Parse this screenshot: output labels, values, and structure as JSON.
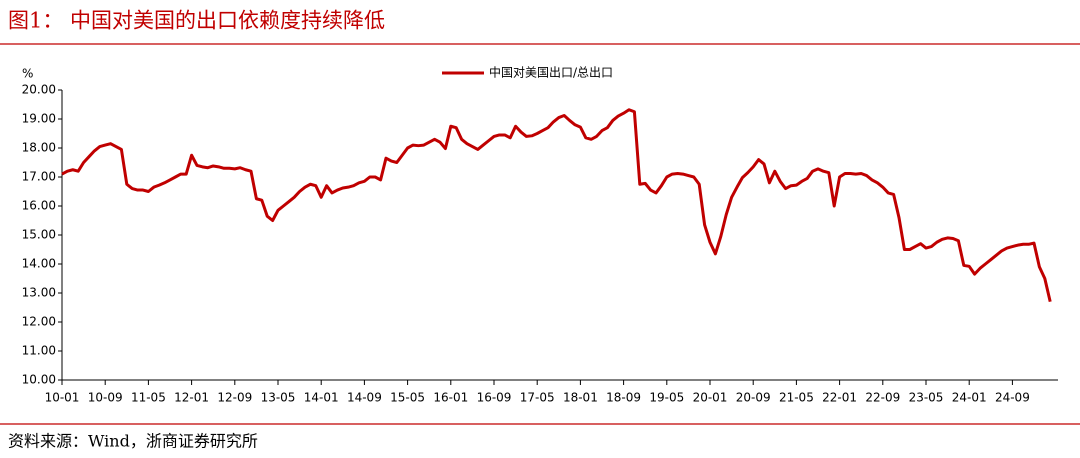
{
  "chart_data": {
    "type": "line",
    "title": "图1：  中国对美国的出口依赖度持续降低",
    "y_label": "%",
    "source": "资料来源：Wind，浙商证券研究所",
    "legend": "top",
    "categories": [
      "10-01",
      null,
      null,
      null,
      null,
      null,
      null,
      null,
      "10-09",
      null,
      null,
      null,
      null,
      null,
      null,
      null,
      "11-05",
      null,
      null,
      null,
      null,
      null,
      null,
      null,
      "12-01",
      null,
      null,
      null,
      null,
      null,
      null,
      null,
      "12-09",
      null,
      null,
      null,
      null,
      null,
      null,
      null,
      "13-05",
      null,
      null,
      null,
      null,
      null,
      null,
      null,
      "14-01",
      null,
      null,
      null,
      null,
      null,
      null,
      null,
      "14-09",
      null,
      null,
      null,
      null,
      null,
      null,
      null,
      "15-05",
      null,
      null,
      null,
      null,
      null,
      null,
      null,
      "16-01",
      null,
      null,
      null,
      null,
      null,
      null,
      null,
      "16-09",
      null,
      null,
      null,
      null,
      null,
      null,
      null,
      "17-05",
      null,
      null,
      null,
      null,
      null,
      null,
      null,
      "18-01",
      null,
      null,
      null,
      null,
      null,
      null,
      null,
      "18-09",
      null,
      null,
      null,
      null,
      null,
      null,
      null,
      "19-05",
      null,
      null,
      null,
      null,
      null,
      null,
      null,
      "20-01",
      null,
      null,
      null,
      null,
      null,
      null,
      null,
      "20-09",
      null,
      null,
      null,
      null,
      null,
      null,
      null,
      "21-05",
      null,
      null,
      null,
      null,
      null,
      null,
      null,
      "22-01",
      null,
      null,
      null,
      null,
      null,
      null,
      null,
      "22-09",
      null,
      null,
      null,
      null,
      null,
      null,
      null,
      "23-05",
      null,
      null,
      null,
      null,
      null,
      null,
      null,
      "24-01",
      null,
      null,
      null,
      null,
      null,
      null,
      null,
      "24-09",
      null,
      null,
      null,
      null,
      null,
      null,
      null
    ],
    "series": [
      {
        "name": "中国对美国出口/总出口",
        "color": "#c00000",
        "values": [
          17.1,
          17.2,
          17.25,
          17.2,
          17.5,
          17.7,
          17.9,
          18.05,
          18.1,
          18.15,
          18.05,
          17.95,
          16.75,
          16.6,
          16.55,
          16.55,
          16.5,
          16.65,
          16.72,
          16.8,
          16.9,
          17.0,
          17.1,
          17.1,
          17.75,
          17.4,
          17.35,
          17.32,
          17.38,
          17.35,
          17.3,
          17.3,
          17.28,
          17.32,
          17.25,
          17.2,
          16.25,
          16.2,
          15.65,
          15.5,
          15.85,
          16.0,
          16.15,
          16.3,
          16.5,
          16.65,
          16.75,
          16.7,
          16.3,
          16.7,
          16.45,
          16.55,
          16.62,
          16.65,
          16.7,
          16.8,
          16.85,
          17.0,
          17.0,
          16.9,
          17.65,
          17.55,
          17.5,
          17.75,
          18.0,
          18.1,
          18.08,
          18.1,
          18.2,
          18.3,
          18.2,
          17.98,
          18.75,
          18.7,
          18.3,
          18.15,
          18.05,
          17.95,
          18.1,
          18.25,
          18.4,
          18.45,
          18.45,
          18.35,
          18.75,
          18.55,
          18.4,
          18.42,
          18.5,
          18.6,
          18.7,
          18.9,
          19.05,
          19.12,
          18.95,
          18.8,
          18.72,
          18.35,
          18.3,
          18.4,
          18.6,
          18.7,
          18.95,
          19.1,
          19.2,
          19.32,
          19.25,
          16.75,
          16.78,
          16.55,
          16.45,
          16.7,
          17.0,
          17.1,
          17.12,
          17.1,
          17.05,
          17.0,
          16.75,
          15.35,
          14.75,
          14.35,
          14.95,
          15.7,
          16.3,
          16.65,
          16.98,
          17.15,
          17.35,
          17.6,
          17.45,
          16.8,
          17.2,
          16.85,
          16.6,
          16.7,
          16.72,
          16.85,
          16.95,
          17.2,
          17.28,
          17.2,
          17.15,
          16.0,
          17.0,
          17.12,
          17.12,
          17.1,
          17.12,
          17.05,
          16.9,
          16.8,
          16.65,
          16.45,
          16.4,
          15.6,
          14.5,
          14.5,
          14.6,
          14.7,
          14.55,
          14.6,
          14.75,
          14.85,
          14.9,
          14.88,
          14.8,
          13.95,
          13.92,
          13.65,
          13.85,
          14.0,
          14.15,
          14.3,
          14.45,
          14.55,
          14.6,
          14.65,
          14.68,
          14.68,
          14.72,
          13.9,
          13.5,
          12.7
        ]
      }
    ],
    "ylim": [
      10,
      20
    ],
    "yticks": [
      {
        "value": 10,
        "label": "10.00"
      },
      {
        "value": 11,
        "label": "11.00"
      },
      {
        "value": 12,
        "label": "12.00"
      },
      {
        "value": 13,
        "label": "13.00"
      },
      {
        "value": 14,
        "label": "14.00"
      },
      {
        "value": 15,
        "label": "15.00"
      },
      {
        "value": 16,
        "label": "16.00"
      },
      {
        "value": 17,
        "label": "17.00"
      },
      {
        "value": 18,
        "label": "18.00"
      },
      {
        "value": 19,
        "label": "19.00"
      },
      {
        "value": 20,
        "label": "20.00"
      }
    ],
    "grid": false
  }
}
